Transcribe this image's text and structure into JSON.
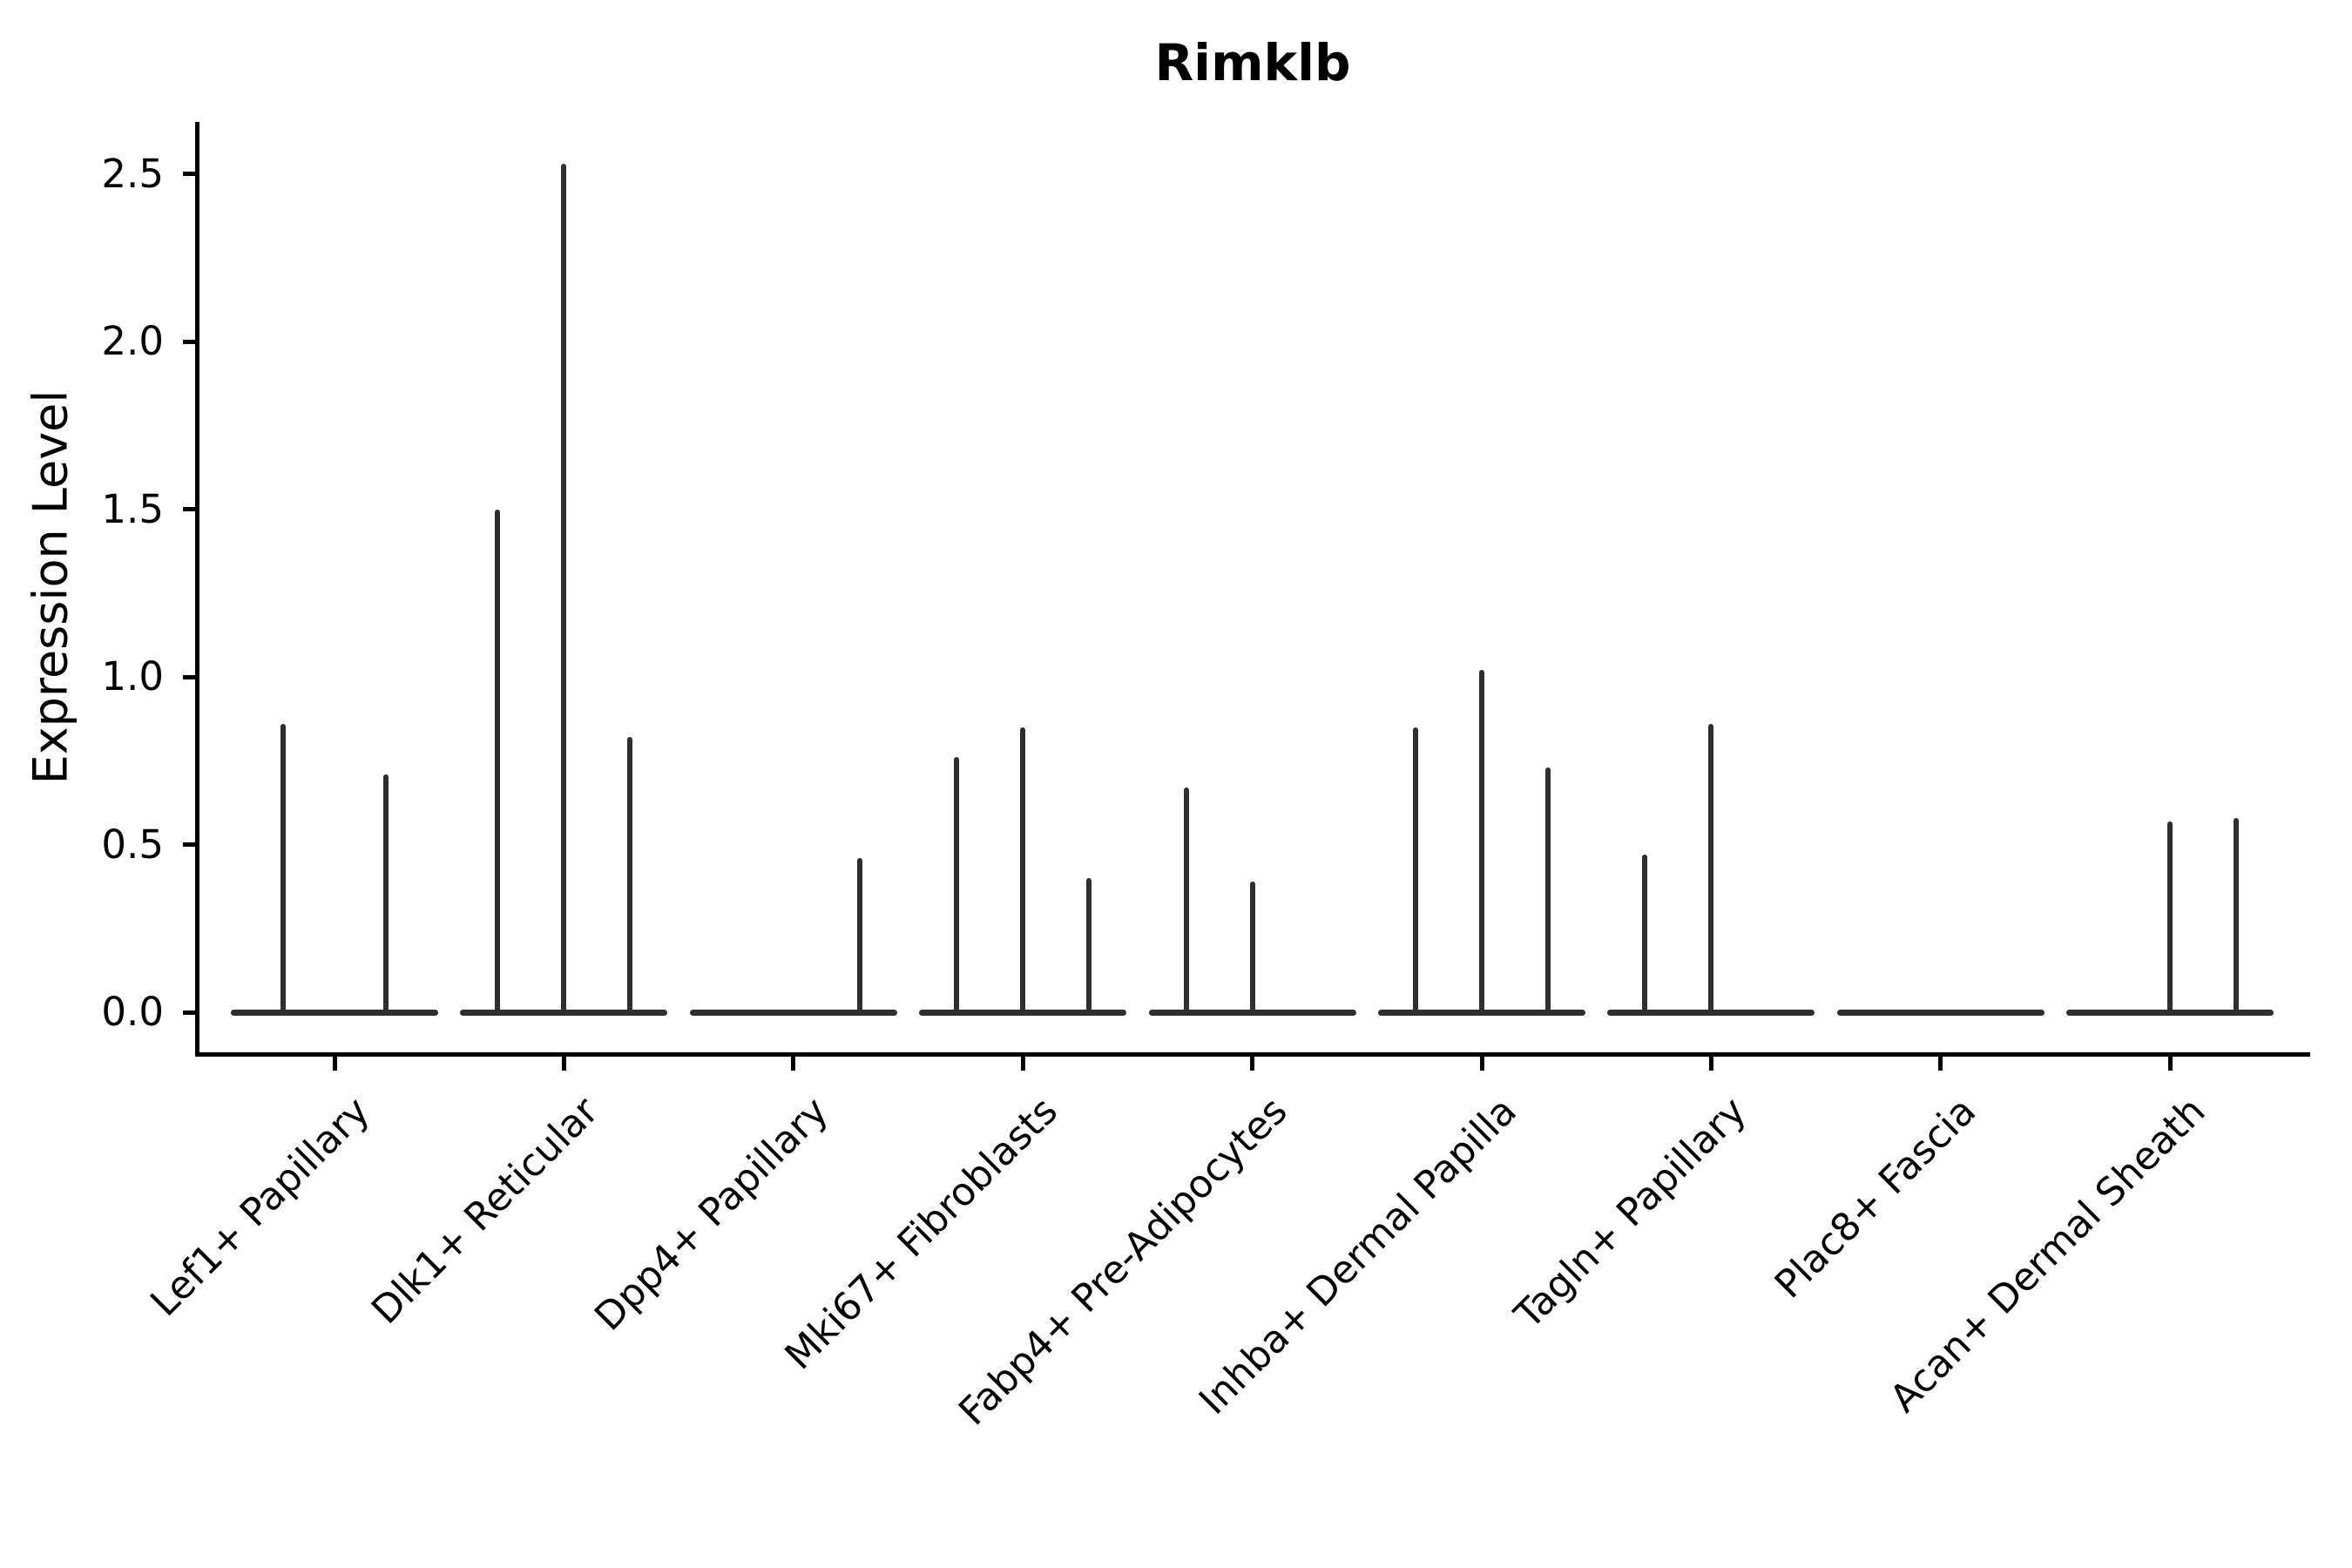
{
  "title": "Rimklb",
  "axes": {
    "y_label": "Expression Level",
    "y_tick_labels": [
      "0.0",
      "0.5",
      "1.0",
      "1.5",
      "2.0",
      "2.5"
    ]
  },
  "chart_data": {
    "type": "violin",
    "title": "Rimklb",
    "xlabel": "",
    "ylabel": "Expression Level",
    "yticks": [
      0.0,
      0.5,
      1.0,
      1.5,
      2.0,
      2.5
    ],
    "ylim": [
      -0.12,
      2.66
    ],
    "grid": false,
    "legend": "none",
    "categories": [
      "Lef1+ Papillary",
      "Dlk1+ Reticular",
      "Dpp4+ Papillary",
      "Mki67+ Fibroblasts",
      "Fabp4+ Pre-Adipocytes",
      "Inhba+ Dermal Papilla",
      "Tagln+ Papillary",
      "Plac8+ Fascia",
      "Acan+ Dermal Sheath"
    ],
    "description": "Violin plot of Rimklb expression; most cells at 0 so each violin renders as a flat baseline with a thin spike up to the max expression value. dx is the horizontal offset (px) of each violin spike from its category center.",
    "violins": [
      {
        "category": "Lef1+ Papillary",
        "spikes": [
          {
            "dx": -59,
            "max": 0.86
          },
          {
            "dx": 59,
            "max": 0.71
          }
        ]
      },
      {
        "category": "Dlk1+ Reticular",
        "spikes": [
          {
            "dx": -76,
            "max": 1.5
          },
          {
            "dx": 0,
            "max": 2.53
          },
          {
            "dx": 76,
            "max": 0.82
          }
        ]
      },
      {
        "category": "Dpp4+ Papillary",
        "spikes": [
          {
            "dx": 76,
            "max": 0.46
          }
        ]
      },
      {
        "category": "Mki67+ Fibroblasts",
        "spikes": [
          {
            "dx": -76,
            "max": 0.76
          },
          {
            "dx": 0,
            "max": 0.85
          },
          {
            "dx": 76,
            "max": 0.4
          }
        ]
      },
      {
        "category": "Fabp4+ Pre-Adipocytes",
        "spikes": [
          {
            "dx": -76,
            "max": 0.67
          },
          {
            "dx": 0,
            "max": 0.39
          }
        ]
      },
      {
        "category": "Inhba+ Dermal Papilla",
        "spikes": [
          {
            "dx": -76,
            "max": 0.85
          },
          {
            "dx": 0,
            "max": 1.02
          },
          {
            "dx": 76,
            "max": 0.73
          }
        ]
      },
      {
        "category": "Tagln+ Papillary",
        "spikes": [
          {
            "dx": -76,
            "max": 0.47
          },
          {
            "dx": 0,
            "max": 0.86
          }
        ]
      },
      {
        "category": "Plac8+ Fascia",
        "spikes": []
      },
      {
        "category": "Acan+ Dermal Sheath",
        "spikes": [
          {
            "dx": 0,
            "max": 0.57
          },
          {
            "dx": 76,
            "max": 0.58
          }
        ]
      }
    ],
    "colors": {
      "line": "#2f2f2f",
      "text": "#000000",
      "background": "#ffffff"
    }
  }
}
